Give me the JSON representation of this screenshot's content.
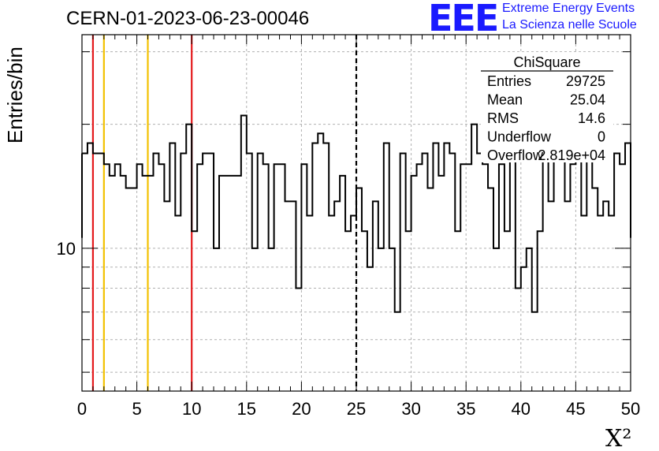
{
  "title": "CERN-01-2023-06-23-00046",
  "logo": {
    "mark": "EEE",
    "line1": "Extreme Energy Events",
    "line2": "La Scienza nelle Scuole"
  },
  "stats": {
    "name": "ChiSquare",
    "rows": [
      {
        "label": "Entries",
        "value": "29725"
      },
      {
        "label": "Mean",
        "value": "25.04"
      },
      {
        "label": "RMS",
        "value": "14.6"
      },
      {
        "label": "Underflow",
        "value": "0"
      },
      {
        "label": "Overflow",
        "value": "2.819e+04"
      }
    ]
  },
  "chart_data": {
    "type": "histogram",
    "title": "CERN-01-2023-06-23-00046",
    "xlabel": "X²",
    "ylabel": "Entries/bin",
    "xlim": [
      0,
      50
    ],
    "ylim": [
      4.5,
      33
    ],
    "yscale": "log",
    "grid": true,
    "bin_width": 0.5,
    "xticks": [
      "0",
      "5",
      "10",
      "15",
      "20",
      "25",
      "30",
      "35",
      "40",
      "45",
      "50"
    ],
    "yticks": [
      "10"
    ],
    "values": [
      17,
      18,
      17,
      17,
      16,
      15,
      16,
      15,
      14,
      14,
      16,
      15,
      15,
      17,
      16,
      13,
      18,
      12,
      17,
      20,
      11,
      16,
      17,
      17,
      10,
      15,
      15,
      15,
      15,
      21,
      17,
      10,
      17,
      16,
      10,
      16,
      16,
      13,
      13,
      8,
      16,
      12,
      18,
      19,
      18,
      12,
      13,
      15,
      11,
      12,
      14,
      11,
      9,
      13,
      10,
      18,
      10,
      7,
      17,
      11,
      15,
      16,
      17,
      14,
      18,
      15,
      18,
      17,
      11,
      16,
      16,
      20,
      17,
      16,
      14,
      10,
      16,
      11,
      20,
      8,
      9,
      10,
      7,
      11,
      20,
      13,
      20,
      17,
      13,
      16,
      17,
      12,
      17,
      14,
      12,
      13,
      12,
      17,
      16,
      18
    ],
    "vlines": [
      {
        "x": 1,
        "color": "#e41a1c",
        "style": "solid"
      },
      {
        "x": 2,
        "color": "#f2c100",
        "style": "solid"
      },
      {
        "x": 6,
        "color": "#f2c100",
        "style": "solid"
      },
      {
        "x": 10,
        "color": "#e41a1c",
        "style": "solid"
      },
      {
        "x": 25,
        "color": "#000000",
        "style": "dashed"
      }
    ],
    "legend_position": "top-right"
  },
  "colors": {
    "line": "#000000",
    "grid": "#b0b0b0",
    "logo": "#1a1aff"
  }
}
